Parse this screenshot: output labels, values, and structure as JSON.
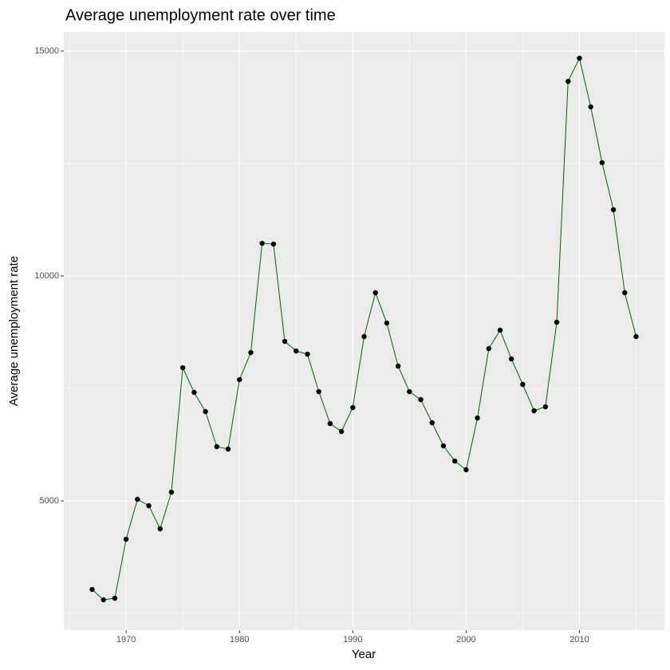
{
  "chart_data": {
    "type": "line",
    "title": "Average unemployment rate over time",
    "xlabel": "Year",
    "ylabel": "Average unemployment rate",
    "x": [
      1967,
      1968,
      1969,
      1970,
      1971,
      1972,
      1973,
      1974,
      1975,
      1976,
      1977,
      1978,
      1979,
      1980,
      1981,
      1982,
      1983,
      1984,
      1985,
      1986,
      1987,
      1988,
      1989,
      1990,
      1991,
      1992,
      1993,
      1994,
      1995,
      1996,
      1997,
      1998,
      1999,
      2000,
      2001,
      2002,
      2003,
      2004,
      2005,
      2006,
      2007,
      2008,
      2009,
      2010,
      2011,
      2012,
      2013,
      2014,
      2015
    ],
    "series": [
      {
        "color": "#006400",
        "marker_color": "#000000",
        "values": [
          3032,
          2802,
          2837,
          4149,
          5036,
          4894,
          4380,
          5195,
          7961,
          7412,
          6986,
          6206,
          6153,
          7695,
          8298,
          10727,
          10709,
          8546,
          8333,
          8262,
          7429,
          6720,
          6543,
          7075,
          8653,
          9628,
          8954,
          7997,
          7429,
          7252,
          6738,
          6224,
          5887,
          5692,
          6844,
          8387,
          8795,
          8156,
          7589,
          7004,
          7092,
          8972,
          14326,
          14840,
          13759,
          12518,
          11472,
          9628,
          8653
        ]
      }
    ],
    "xlim": [
      1964.5,
      2017.5
    ],
    "xticks": [
      1970,
      1980,
      1990,
      2000,
      2010
    ],
    "x_minor_ticks": [
      1965,
      1975,
      1985,
      1995,
      2005,
      2015
    ],
    "ylim": [
      2128,
      15426
    ],
    "yticks": [
      5000,
      10000,
      15000
    ],
    "y_minor_ticks": [
      2500,
      7500,
      12500
    ],
    "grid": true
  }
}
